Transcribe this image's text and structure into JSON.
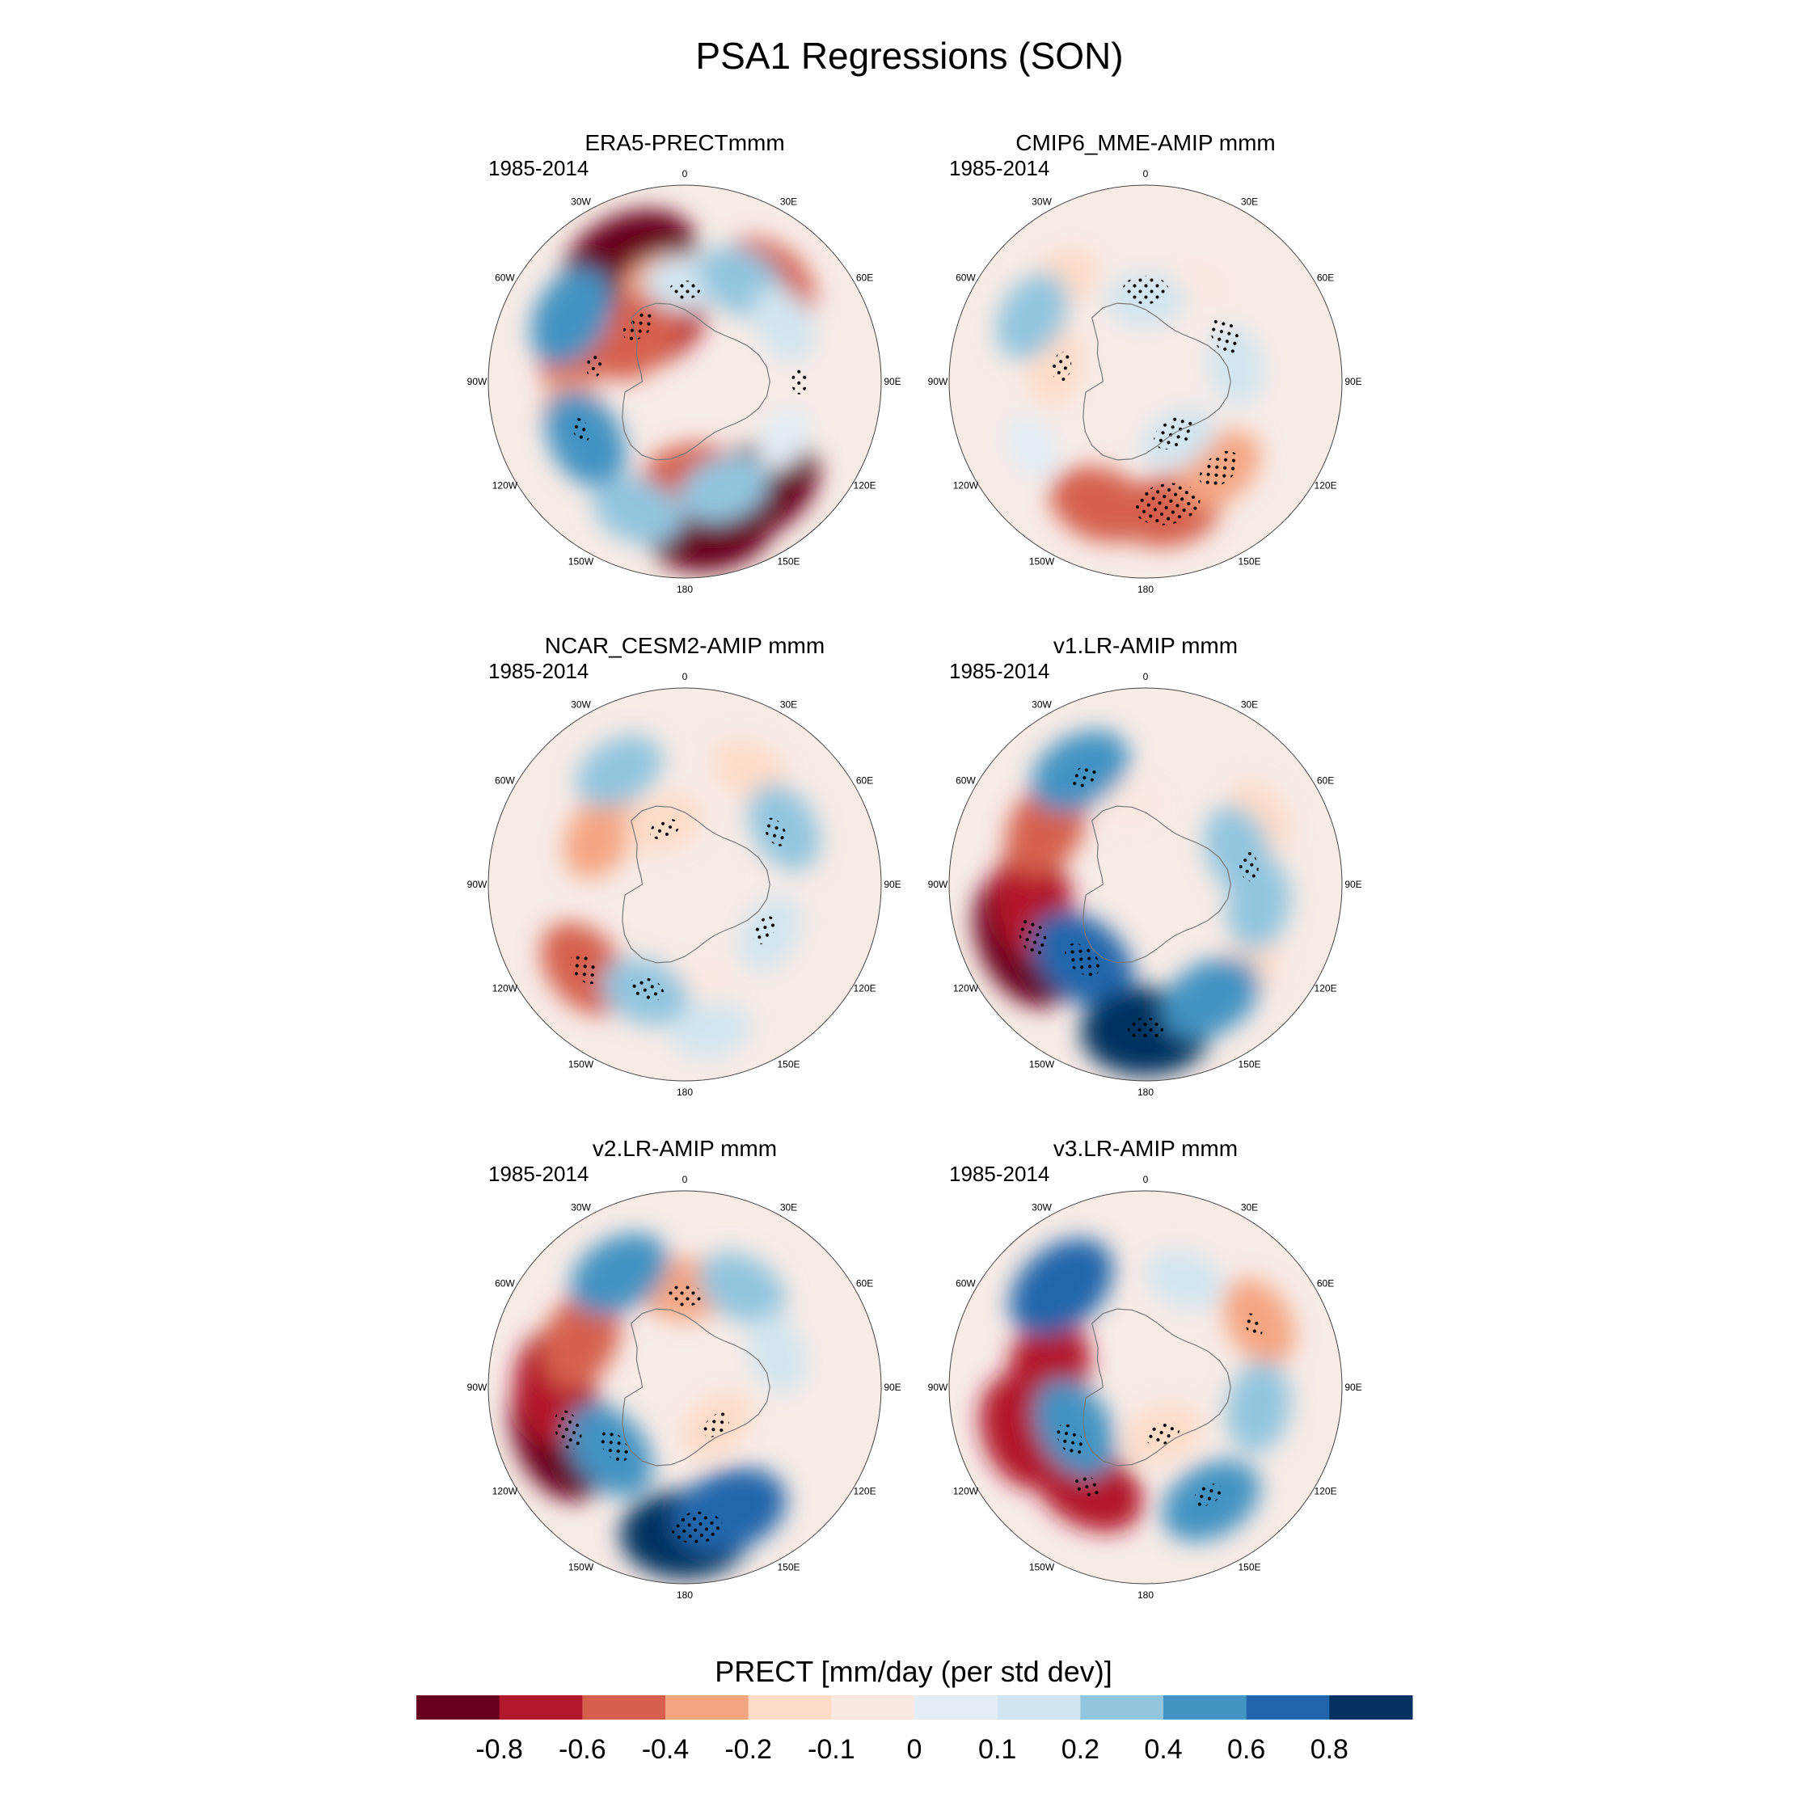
{
  "figure": {
    "title": "PSA1 Regressions (SON)"
  },
  "panels": [
    {
      "title": "ERA5-PRECTmmm",
      "period": "1985-2014",
      "anomalies": [
        {
          "lon": -25,
          "lat": -50,
          "level": 7
        },
        {
          "lon": -40,
          "lat": -55,
          "level": 6
        },
        {
          "lon": -70,
          "lat": -55,
          "level": 4
        },
        {
          "lon": -30,
          "lat": -70,
          "level": 5
        },
        {
          "lon": 40,
          "lat": -50,
          "level": 4
        },
        {
          "lon": -10,
          "lat": -60,
          "level": 3
        },
        {
          "lon": -110,
          "lat": -55,
          "level": 3
        },
        {
          "lon": 170,
          "lat": -45,
          "level": 6
        },
        {
          "lon": 145,
          "lat": -50,
          "level": 6
        },
        {
          "lon": 175,
          "lat": -60,
          "level": 4
        },
        {
          "lon": -45,
          "lat": -70,
          "level": 4
        },
        {
          "lon": -120,
          "lat": -55,
          "level": -4
        },
        {
          "lon": -60,
          "lat": -50,
          "level": -4
        },
        {
          "lon": -160,
          "lat": -48,
          "level": -3
        },
        {
          "lon": 0,
          "lat": -60,
          "level": -2
        },
        {
          "lon": 30,
          "lat": -55,
          "level": -3
        },
        {
          "lon": 60,
          "lat": -55,
          "level": -2
        },
        {
          "lon": 160,
          "lat": -55,
          "level": -3
        },
        {
          "lon": 120,
          "lat": -55,
          "level": -1
        }
      ],
      "stipples": [
        {
          "lon": -40,
          "lat": -68,
          "r": 0.07
        },
        {
          "lon": -80,
          "lat": -62,
          "r": 0.05
        },
        {
          "lon": 0,
          "lat": -62,
          "r": 0.06
        },
        {
          "lon": 90,
          "lat": -55,
          "r": 0.05
        },
        {
          "lon": -115,
          "lat": -55,
          "r": 0.05
        }
      ]
    },
    {
      "title": "CMIP6_MME-AMIP  mmm",
      "period": "1985-2014",
      "anomalies": [
        {
          "lon": 170,
          "lat": -50,
          "level": 4
        },
        {
          "lon": -160,
          "lat": -50,
          "level": 4
        },
        {
          "lon": 140,
          "lat": -55,
          "level": 3
        },
        {
          "lon": -80,
          "lat": -62,
          "level": 2
        },
        {
          "lon": -40,
          "lat": -50,
          "level": 2
        },
        {
          "lon": 30,
          "lat": -55,
          "level": 1
        },
        {
          "lon": -60,
          "lat": -50,
          "level": -3
        },
        {
          "lon": 0,
          "lat": -65,
          "level": -2
        },
        {
          "lon": 80,
          "lat": -62,
          "level": -2
        },
        {
          "lon": 150,
          "lat": -70,
          "level": -2
        },
        {
          "lon": -120,
          "lat": -50,
          "level": -1
        }
      ],
      "stipples": [
        {
          "lon": 170,
          "lat": -52,
          "r": 0.13
        },
        {
          "lon": 140,
          "lat": -55,
          "r": 0.09
        },
        {
          "lon": 0,
          "lat": -62,
          "r": 0.09
        },
        {
          "lon": 60,
          "lat": -62,
          "r": 0.08
        },
        {
          "lon": 150,
          "lat": -72,
          "r": 0.09
        },
        {
          "lon": -80,
          "lat": -64,
          "r": 0.06
        }
      ]
    },
    {
      "title": "NCAR_CESM2-AMIP  mmm",
      "period": "1985-2014",
      "anomalies": [
        {
          "lon": -130,
          "lat": -50,
          "level": 4
        },
        {
          "lon": -60,
          "lat": -60,
          "level": 3
        },
        {
          "lon": -20,
          "lat": -70,
          "level": 2
        },
        {
          "lon": 30,
          "lat": -50,
          "level": 2
        },
        {
          "lon": 170,
          "lat": -60,
          "level": 1
        },
        {
          "lon": -30,
          "lat": -50,
          "level": -3
        },
        {
          "lon": -160,
          "lat": -55,
          "level": -3
        },
        {
          "lon": 60,
          "lat": -55,
          "level": -3
        },
        {
          "lon": 120,
          "lat": -60,
          "level": -2
        },
        {
          "lon": 170,
          "lat": -45,
          "level": -2
        }
      ],
      "stipples": [
        {
          "lon": -130,
          "lat": -50,
          "r": 0.07
        },
        {
          "lon": -160,
          "lat": -56,
          "r": 0.07
        },
        {
          "lon": -20,
          "lat": -72,
          "r": 0.06
        },
        {
          "lon": 60,
          "lat": -58,
          "r": 0.06
        },
        {
          "lon": 120,
          "lat": -62,
          "r": 0.06
        }
      ]
    },
    {
      "title": "v1.LR-AMIP  mmm",
      "period": "1985-2014",
      "anomalies": [
        {
          "lon": -115,
          "lat": -50,
          "level": 7
        },
        {
          "lon": -100,
          "lat": -55,
          "level": 5
        },
        {
          "lon": -60,
          "lat": -55,
          "level": 4
        },
        {
          "lon": 130,
          "lat": -50,
          "level": 2
        },
        {
          "lon": 60,
          "lat": -50,
          "level": 2
        },
        {
          "lon": -10,
          "lat": -65,
          "level": 1
        },
        {
          "lon": -140,
          "lat": -60,
          "level": -5
        },
        {
          "lon": 180,
          "lat": -45,
          "level": -6
        },
        {
          "lon": 150,
          "lat": -50,
          "level": -4
        },
        {
          "lon": -30,
          "lat": -50,
          "level": -4
        },
        {
          "lon": 70,
          "lat": -60,
          "level": -3
        },
        {
          "lon": 100,
          "lat": -55,
          "level": -3
        }
      ],
      "stipples": [
        {
          "lon": -115,
          "lat": -52,
          "r": 0.08
        },
        {
          "lon": -140,
          "lat": -60,
          "r": 0.08
        },
        {
          "lon": 180,
          "lat": -46,
          "r": 0.07
        },
        {
          "lon": -30,
          "lat": -52,
          "r": 0.06
        },
        {
          "lon": 80,
          "lat": -58,
          "r": 0.06
        }
      ]
    },
    {
      "title": "v2.LR-AMIP  mmm",
      "period": "1985-2014",
      "anomalies": [
        {
          "lon": -110,
          "lat": -50,
          "level": 7
        },
        {
          "lon": -90,
          "lat": -50,
          "level": 5
        },
        {
          "lon": -65,
          "lat": -55,
          "level": 4
        },
        {
          "lon": 0,
          "lat": -60,
          "level": 3
        },
        {
          "lon": 140,
          "lat": -75,
          "level": 2
        },
        {
          "lon": 180,
          "lat": -45,
          "level": -6
        },
        {
          "lon": 160,
          "lat": -50,
          "level": -5
        },
        {
          "lon": -130,
          "lat": -60,
          "level": -4
        },
        {
          "lon": -30,
          "lat": -50,
          "level": -4
        },
        {
          "lon": 30,
          "lat": -55,
          "level": -3
        },
        {
          "lon": 70,
          "lat": -60,
          "level": -2
        }
      ],
      "stipples": [
        {
          "lon": -110,
          "lat": -52,
          "r": 0.08
        },
        {
          "lon": 175,
          "lat": -47,
          "r": 0.1
        },
        {
          "lon": -130,
          "lat": -62,
          "r": 0.07
        },
        {
          "lon": 0,
          "lat": -62,
          "r": 0.07
        },
        {
          "lon": 140,
          "lat": -75,
          "r": 0.06
        }
      ]
    },
    {
      "title": "v3.LR-AMIP  mmm",
      "period": "1985-2014",
      "anomalies": [
        {
          "lon": -110,
          "lat": -50,
          "level": 5
        },
        {
          "lon": -150,
          "lat": -55,
          "level": 5
        },
        {
          "lon": -80,
          "lat": -60,
          "level": 5
        },
        {
          "lon": 60,
          "lat": -50,
          "level": 3
        },
        {
          "lon": 160,
          "lat": -75,
          "level": 2
        },
        {
          "lon": -40,
          "lat": -50,
          "level": -5
        },
        {
          "lon": 150,
          "lat": -50,
          "level": -4
        },
        {
          "lon": -120,
          "lat": -65,
          "level": -4
        },
        {
          "lon": 100,
          "lat": -55,
          "level": -3
        },
        {
          "lon": 20,
          "lat": -55,
          "level": -2
        }
      ],
      "stipples": [
        {
          "lon": -125,
          "lat": -62,
          "r": 0.07
        },
        {
          "lon": -150,
          "lat": -55,
          "r": 0.06
        },
        {
          "lon": 160,
          "lat": -75,
          "r": 0.07
        },
        {
          "lon": 150,
          "lat": -52,
          "r": 0.06
        },
        {
          "lon": 60,
          "lat": -52,
          "r": 0.05
        }
      ]
    }
  ],
  "lon_labels": [
    "0",
    "30E",
    "60E",
    "90E",
    "120E",
    "150E",
    "180",
    "150W",
    "120W",
    "90W",
    "60W",
    "30W"
  ],
  "colorbar": {
    "title": "PRECT [mm/day (per std dev)]",
    "tick_labels": [
      "-0.8",
      "-0.6",
      "-0.4",
      "-0.2",
      "-0.1",
      "0",
      "0.1",
      "0.2",
      "0.4",
      "0.6",
      "0.8"
    ],
    "colors": [
      "#67001f",
      "#b2182b",
      "#d6604d",
      "#f4a582",
      "#fddbc7",
      "#fbe8e0",
      "#e2edf4",
      "#d1e5f0",
      "#92c5de",
      "#4393c3",
      "#2166ac",
      "#053061"
    ]
  }
}
